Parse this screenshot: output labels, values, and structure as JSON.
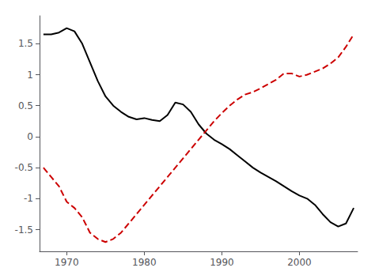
{
  "chart_data": {
    "type": "line",
    "x": [
      1967,
      1968,
      1969,
      1970,
      1971,
      1972,
      1973,
      1974,
      1975,
      1976,
      1977,
      1978,
      1979,
      1980,
      1981,
      1982,
      1983,
      1984,
      1985,
      1986,
      1987,
      1988,
      1989,
      1990,
      1991,
      1992,
      1993,
      1994,
      1995,
      1996,
      1997,
      1998,
      1999,
      2000,
      2001,
      2002,
      2003,
      2004,
      2005,
      2006,
      2007
    ],
    "series": [
      {
        "color": "#000000",
        "line_style": "solid",
        "values": [
          1.65,
          1.65,
          1.68,
          1.75,
          1.7,
          1.5,
          1.2,
          0.9,
          0.65,
          0.5,
          0.4,
          0.32,
          0.28,
          0.3,
          0.27,
          0.25,
          0.35,
          0.55,
          0.52,
          0.4,
          0.2,
          0.05,
          -0.05,
          -0.12,
          -0.2,
          -0.3,
          -0.4,
          -0.5,
          -0.58,
          -0.65,
          -0.72,
          -0.8,
          -0.88,
          -0.95,
          -1.0,
          -1.1,
          -1.25,
          -1.38,
          -1.45,
          -1.4,
          -1.15
        ]
      },
      {
        "color": "#cc0000",
        "line_style": "dashed",
        "values": [
          -0.5,
          -0.65,
          -0.8,
          -1.05,
          -1.15,
          -1.3,
          -1.55,
          -1.65,
          -1.7,
          -1.65,
          -1.55,
          -1.4,
          -1.25,
          -1.1,
          -0.95,
          -0.8,
          -0.65,
          -0.5,
          -0.35,
          -0.2,
          -0.05,
          0.1,
          0.25,
          0.38,
          0.5,
          0.6,
          0.68,
          0.72,
          0.78,
          0.85,
          0.92,
          1.02,
          1.02,
          0.97,
          1.0,
          1.05,
          1.1,
          1.18,
          1.28,
          1.45,
          1.65
        ]
      }
    ],
    "xlim": [
      1966.5,
      2007.5
    ],
    "xticks": [
      1970,
      1980,
      1990,
      2000
    ],
    "ylim": [
      -1.85,
      1.95
    ],
    "yticks": [
      -1.5,
      -1,
      -0.5,
      0,
      0.5,
      1,
      1.5
    ],
    "grid": false
  }
}
